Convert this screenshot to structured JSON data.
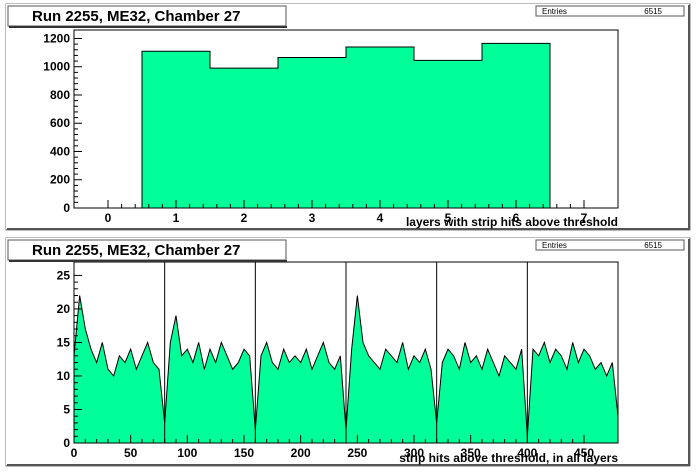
{
  "chart_data": [
    {
      "type": "bar",
      "title": "Run 2255, ME32, Chamber 27",
      "stats": {
        "label": "Entries",
        "value": "6515"
      },
      "xlabel": "layers with strip hits above threshold",
      "ylabel": "",
      "xlim": [
        -0.5,
        7.5
      ],
      "ylim": [
        0,
        1260
      ],
      "xticks": [
        0,
        1,
        2,
        3,
        4,
        5,
        6,
        7
      ],
      "yticks": [
        0,
        200,
        400,
        600,
        800,
        1000,
        1200
      ],
      "categories": [
        1,
        2,
        3,
        4,
        5,
        6
      ],
      "values": [
        1110,
        990,
        1065,
        1140,
        1045,
        1165
      ],
      "fill_color": "#00ff99"
    },
    {
      "type": "area",
      "title": "Run 2255, ME32, Chamber 27",
      "stats": {
        "label": "Entries",
        "value": "6515"
      },
      "xlabel": "strip hits above threshold, in all layers",
      "ylabel": "",
      "xlim": [
        0,
        480
      ],
      "ylim": [
        0,
        27
      ],
      "xticks": [
        0,
        50,
        100,
        150,
        200,
        250,
        300,
        350,
        400,
        450
      ],
      "yticks": [
        0,
        5,
        10,
        15,
        20,
        25
      ],
      "separators": [
        80,
        160,
        240,
        320,
        400
      ],
      "x": [
        0,
        5,
        10,
        15,
        20,
        25,
        30,
        35,
        40,
        45,
        50,
        55,
        60,
        65,
        70,
        75,
        80,
        85,
        90,
        95,
        100,
        105,
        110,
        115,
        120,
        125,
        130,
        135,
        140,
        145,
        150,
        155,
        160,
        165,
        170,
        175,
        180,
        185,
        190,
        195,
        200,
        205,
        210,
        215,
        220,
        225,
        230,
        235,
        240,
        245,
        250,
        255,
        260,
        265,
        270,
        275,
        280,
        285,
        290,
        295,
        300,
        305,
        310,
        315,
        320,
        325,
        330,
        335,
        340,
        345,
        350,
        355,
        360,
        365,
        370,
        375,
        380,
        385,
        390,
        395,
        400,
        405,
        410,
        415,
        420,
        425,
        430,
        435,
        440,
        445,
        450,
        455,
        460,
        465,
        470,
        475,
        480
      ],
      "values": [
        13,
        22,
        17,
        14,
        12,
        15,
        11,
        10,
        13,
        12,
        14,
        11,
        13,
        15,
        12,
        11,
        3,
        15,
        19,
        13,
        14,
        12,
        15,
        11,
        14,
        12,
        15,
        13,
        11,
        12,
        14,
        13,
        2,
        13,
        15,
        12,
        11,
        14,
        12,
        13,
        12,
        14,
        11,
        13,
        15,
        12,
        11,
        13,
        2,
        14,
        22,
        15,
        13,
        12,
        11,
        14,
        13,
        12,
        15,
        11,
        13,
        12,
        14,
        11,
        3,
        12,
        14,
        13,
        11,
        15,
        12,
        13,
        11,
        14,
        12,
        10,
        13,
        12,
        11,
        14,
        1,
        14,
        13,
        15,
        12,
        14,
        13,
        11,
        15,
        12,
        14,
        13,
        11,
        12,
        10,
        12,
        4
      ],
      "fill_color": "#00ff99"
    }
  ]
}
